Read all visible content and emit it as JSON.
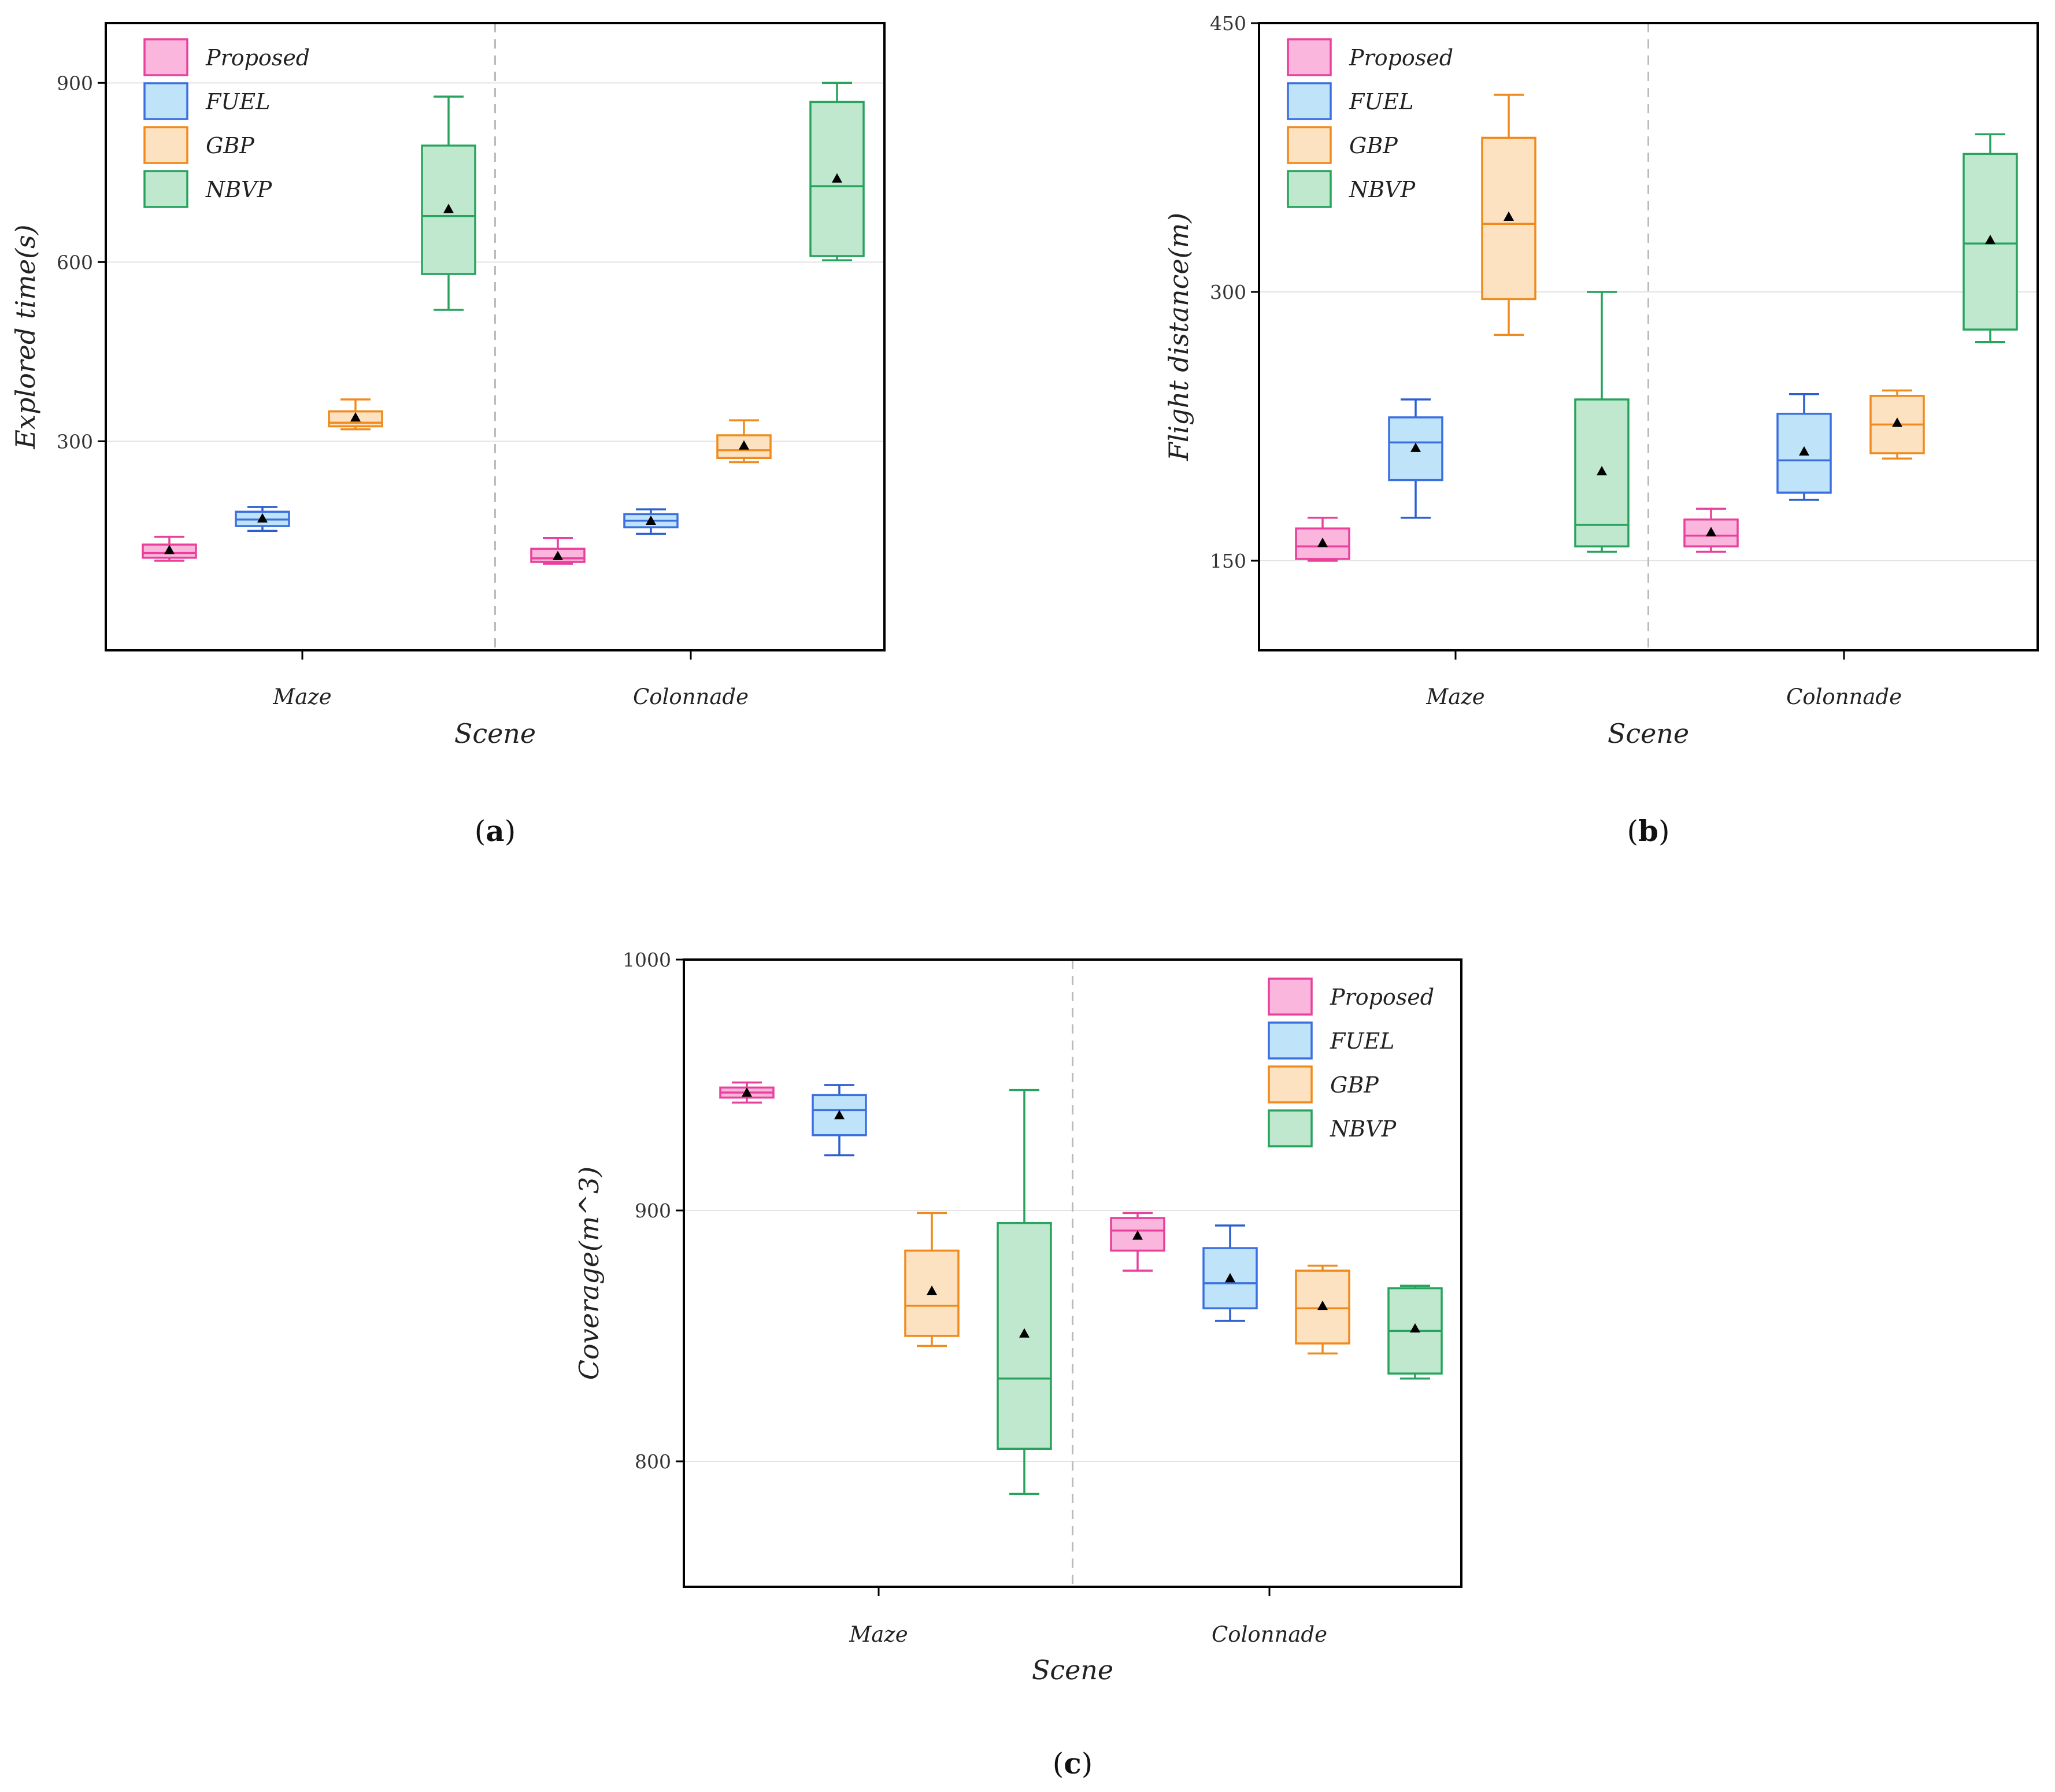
{
  "chart_data": [
    {
      "type": "box",
      "panel": "(a)",
      "panel_letter": "a",
      "title": "",
      "xlabel": "Scene",
      "ylabel": "Explored time(s)",
      "ylim": [
        -50,
        1000
      ],
      "yticks": [
        300,
        600,
        900
      ],
      "categories": [
        "Maze",
        "Colonnade"
      ],
      "legend": [
        "Proposed",
        "FUEL",
        "GBP",
        "NBVP"
      ],
      "legend_position": "top-left",
      "series": [
        {
          "name": "Proposed",
          "boxes": [
            {
              "min": 100,
              "q1": 105,
              "median": 113,
              "q3": 127,
              "max": 140,
              "mean": 118
            },
            {
              "min": 95,
              "q1": 98,
              "median": 104,
              "q3": 120,
              "max": 138,
              "mean": 108
            }
          ]
        },
        {
          "name": "FUEL",
          "boxes": [
            {
              "min": 150,
              "q1": 158,
              "median": 169,
              "q3": 182,
              "max": 190,
              "mean": 171
            },
            {
              "min": 145,
              "q1": 156,
              "median": 167,
              "q3": 178,
              "max": 186,
              "mean": 167
            }
          ]
        },
        {
          "name": "GBP",
          "boxes": [
            {
              "min": 320,
              "q1": 325,
              "median": 331,
              "q3": 350,
              "max": 370,
              "mean": 340
            },
            {
              "min": 265,
              "q1": 272,
              "median": 285,
              "q3": 310,
              "max": 335,
              "mean": 293
            }
          ]
        },
        {
          "name": "NBVP",
          "boxes": [
            {
              "min": 520,
              "q1": 580,
              "median": 677,
              "q3": 795,
              "max": 877,
              "mean": 689
            },
            {
              "min": 603,
              "q1": 610,
              "median": 727,
              "q3": 868,
              "max": 900,
              "mean": 740
            }
          ]
        }
      ]
    },
    {
      "type": "box",
      "panel": "(b)",
      "panel_letter": "b",
      "title": "",
      "xlabel": "Scene",
      "ylabel": "Flight distance(m)",
      "ylim": [
        100,
        450
      ],
      "yticks": [
        150,
        300,
        450
      ],
      "categories": [
        "Maze",
        "Colonnade"
      ],
      "legend": [
        "Proposed",
        "FUEL",
        "GBP",
        "NBVP"
      ],
      "legend_position": "top-left",
      "series": [
        {
          "name": "Proposed",
          "boxes": [
            {
              "min": 150,
              "q1": 151,
              "median": 158,
              "q3": 168,
              "max": 174,
              "mean": 160
            },
            {
              "min": 155,
              "q1": 158,
              "median": 164,
              "q3": 173,
              "max": 179,
              "mean": 166
            }
          ]
        },
        {
          "name": "FUEL",
          "boxes": [
            {
              "min": 174,
              "q1": 195,
              "median": 216,
              "q3": 230,
              "max": 240,
              "mean": 213
            },
            {
              "min": 184,
              "q1": 188,
              "median": 206,
              "q3": 232,
              "max": 243,
              "mean": 211
            }
          ]
        },
        {
          "name": "GBP",
          "boxes": [
            {
              "min": 276,
              "q1": 296,
              "median": 338,
              "q3": 386,
              "max": 410,
              "mean": 342
            },
            {
              "min": 207,
              "q1": 210,
              "median": 226,
              "q3": 242,
              "max": 245,
              "mean": 227
            }
          ]
        },
        {
          "name": "NBVP",
          "boxes": [
            {
              "min": 155,
              "q1": 158,
              "median": 170,
              "q3": 240,
              "max": 300,
              "mean": 200
            },
            {
              "min": 272,
              "q1": 279,
              "median": 327,
              "q3": 377,
              "max": 388,
              "mean": 329
            }
          ]
        }
      ]
    },
    {
      "type": "box",
      "panel": "(c)",
      "panel_letter": "c",
      "title": "",
      "xlabel": "Scene",
      "ylabel": "Coverage(m^3)",
      "ylim": [
        750,
        1000
      ],
      "yticks": [
        800,
        900,
        1000
      ],
      "categories": [
        "Maze",
        "Colonnade"
      ],
      "legend": [
        "Proposed",
        "FUEL",
        "GBP",
        "NBVP"
      ],
      "legend_position": "top-right",
      "series": [
        {
          "name": "Proposed",
          "boxes": [
            {
              "min": 943,
              "q1": 945,
              "median": 947,
              "q3": 949,
              "max": 951,
              "mean": 947
            },
            {
              "min": 876,
              "q1": 884,
              "median": 892,
              "q3": 897,
              "max": 899,
              "mean": 890
            }
          ]
        },
        {
          "name": "FUEL",
          "boxes": [
            {
              "min": 922,
              "q1": 930,
              "median": 940,
              "q3": 946,
              "max": 950,
              "mean": 938
            },
            {
              "min": 856,
              "q1": 861,
              "median": 871,
              "q3": 885,
              "max": 894,
              "mean": 873
            }
          ]
        },
        {
          "name": "GBP",
          "boxes": [
            {
              "min": 846,
              "q1": 850,
              "median": 862,
              "q3": 884,
              "max": 899,
              "mean": 868
            },
            {
              "min": 843,
              "q1": 847,
              "median": 861,
              "q3": 876,
              "max": 878,
              "mean": 862
            }
          ]
        },
        {
          "name": "NBVP",
          "boxes": [
            {
              "min": 787,
              "q1": 805,
              "median": 833,
              "q3": 895,
              "max": 948,
              "mean": 851
            },
            {
              "min": 833,
              "q1": 835,
              "median": 852,
              "q3": 869,
              "max": 870,
              "mean": 853
            }
          ]
        }
      ]
    }
  ],
  "colors": {
    "Proposed": {
      "stroke": "#e8409b",
      "fill": "#fbb6dd",
      "whisker": "#e8409b"
    },
    "FUEL": {
      "stroke": "#3b6fe0",
      "fill": "#bfe4fa",
      "whisker": "#2a5fcf"
    },
    "GBP": {
      "stroke": "#f08a1c",
      "fill": "#fde2c2",
      "whisker": "#f08a1c"
    },
    "NBVP": {
      "stroke": "#27a35d",
      "fill": "#bfe8cf",
      "whisker": "#27a35d"
    },
    "mean_marker": "#000000",
    "grid": "#e3e3e3",
    "divider": "#bbbbbb",
    "frame": "#000000"
  }
}
